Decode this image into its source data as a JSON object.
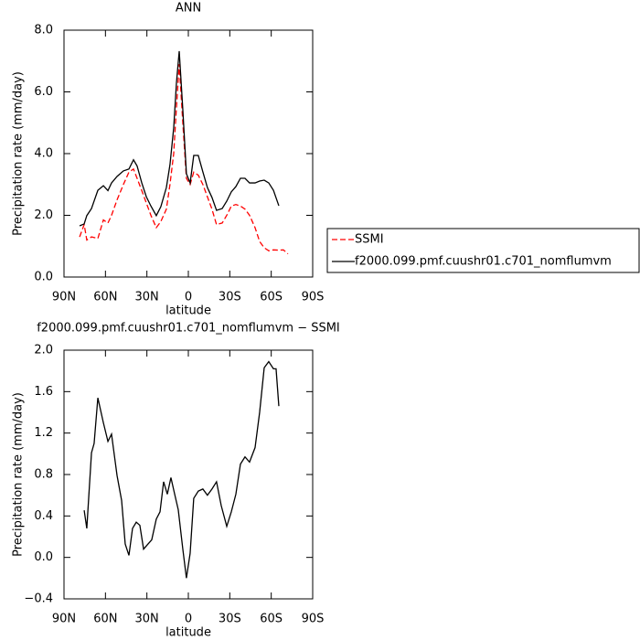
{
  "chart_data": [
    {
      "type": "line",
      "title": "ANN",
      "x_label": "latitude",
      "y_label": "Precipitation rate (mm/day)",
      "xlim": [
        90,
        -90
      ],
      "xticks": [
        {
          "value": 90,
          "label": "90N"
        },
        {
          "value": 60,
          "label": "60N"
        },
        {
          "value": 30,
          "label": "30N"
        },
        {
          "value": 0,
          "label": "0"
        },
        {
          "value": -30,
          "label": "30S"
        },
        {
          "value": -60,
          "label": "60S"
        },
        {
          "value": -90,
          "label": "90S"
        }
      ],
      "ylim": [
        0,
        8
      ],
      "yticks": [
        {
          "value": 0,
          "label": "0.0"
        },
        {
          "value": 2,
          "label": "2.0"
        },
        {
          "value": 4,
          "label": "4.0"
        },
        {
          "value": 6,
          "label": "6.0"
        },
        {
          "value": 8,
          "label": "8.0"
        }
      ],
      "legend": "right",
      "x": [
        78.7,
        75.4,
        73.5,
        70.1,
        65.5,
        61.5,
        58.2,
        55.6,
        51.6,
        47.0,
        43.0,
        39.7,
        37.1,
        33.7,
        30.4,
        27.1,
        23.2,
        19.9,
        15.9,
        13.3,
        10.6,
        8.6,
        6.6,
        4.0,
        1.4,
        -1.3,
        -3.9,
        -7.2,
        -10.5,
        -13.8,
        -17.1,
        -20.4,
        -24.5,
        -27.8,
        -31.1,
        -34.4,
        -37.7,
        -41.0,
        -44.3,
        -48.3,
        -51.6,
        -54.9,
        -58.2,
        -61.6,
        -65.5,
        -68.8,
        -72.1
      ],
      "series": [
        {
          "name": "SSMI",
          "color": "#ff0000",
          "line_style": "dashed",
          "values": [
            1.3,
            1.7,
            1.2,
            1.3,
            1.25,
            1.85,
            1.75,
            2.0,
            2.5,
            3.0,
            3.4,
            3.5,
            3.2,
            2.8,
            2.4,
            2.0,
            1.6,
            1.8,
            2.2,
            3.0,
            4.0,
            5.5,
            6.9,
            5.0,
            3.2,
            3.0,
            3.4,
            3.3,
            3.0,
            2.6,
            2.2,
            1.7,
            1.75,
            2.0,
            2.3,
            2.35,
            2.3,
            2.2,
            2.0,
            1.6,
            1.15,
            0.95,
            0.85,
            0.88,
            0.87,
            0.88,
            0.75
          ]
        },
        {
          "name": "f2000.099.pmf.cuushr01.c701_nomflumvm",
          "color": "#000000",
          "line_style": "solid",
          "values": [
            1.66,
            1.72,
            1.99,
            2.22,
            2.81,
            2.96,
            2.8,
            3.05,
            3.26,
            3.44,
            3.5,
            3.8,
            3.6,
            3.05,
            2.6,
            2.3,
            1.99,
            2.28,
            2.9,
            3.64,
            4.83,
            6.3,
            7.32,
            5.42,
            3.35,
            3.05,
            3.94,
            3.94,
            3.41,
            2.9,
            2.58,
            2.16,
            2.22,
            2.46,
            2.76,
            2.93,
            3.2,
            3.2,
            3.05,
            3.05,
            3.11,
            3.14,
            3.05,
            2.81,
            2.31,
            null,
            null
          ]
        }
      ]
    },
    {
      "type": "line",
      "title": "f2000.099.pmf.cuushr01.c701_nomflumvm − SSMI",
      "x_label": "latitude",
      "y_label": "Precipitation rate (mm/day)",
      "xlim": [
        90,
        -90
      ],
      "xticks": [
        {
          "value": 90,
          "label": "90N"
        },
        {
          "value": 60,
          "label": "60N"
        },
        {
          "value": 30,
          "label": "30N"
        },
        {
          "value": 0,
          "label": "0"
        },
        {
          "value": -30,
          "label": "30S"
        },
        {
          "value": -60,
          "label": "60S"
        },
        {
          "value": -90,
          "label": "90S"
        }
      ],
      "ylim": [
        -0.4,
        2.0
      ],
      "yticks": [
        {
          "value": -0.4,
          "label": "−0.4"
        },
        {
          "value": 0,
          "label": "0.0"
        },
        {
          "value": 0.4,
          "label": "0.4"
        },
        {
          "value": 0.8,
          "label": "0.8"
        },
        {
          "value": 1.2,
          "label": "1.2"
        },
        {
          "value": 1.6,
          "label": "1.6"
        },
        {
          "value": 2.0,
          "label": "2.0"
        }
      ],
      "x": [
        75.4,
        73.5,
        70.1,
        68.2,
        65.5,
        61.5,
        58.2,
        55.6,
        51.6,
        48.3,
        45.7,
        43.0,
        40.4,
        37.7,
        35.1,
        32.4,
        29.8,
        26.5,
        23.2,
        20.5,
        17.9,
        15.2,
        12.6,
        9.9,
        7.3,
        4.0,
        1.4,
        -1.3,
        -3.9,
        -7.2,
        -10.5,
        -13.8,
        -17.1,
        -20.4,
        -23.8,
        -27.8,
        -31.1,
        -34.4,
        -37.7,
        -41.0,
        -44.3,
        -48.3,
        -51.6,
        -54.9,
        -58.2,
        -61.6,
        -63.5,
        -65.5
      ],
      "series": [
        {
          "color": "#000000",
          "line_style": "solid",
          "values": [
            0.455,
            0.28,
            1.01,
            1.1,
            1.54,
            1.3,
            1.12,
            1.19,
            0.79,
            0.55,
            0.13,
            0.02,
            0.28,
            0.34,
            0.31,
            0.08,
            0.12,
            0.17,
            0.37,
            0.44,
            0.73,
            0.61,
            0.77,
            0.61,
            0.46,
            0.08,
            -0.2,
            0.04,
            0.57,
            0.64,
            0.66,
            0.6,
            0.66,
            0.73,
            0.5,
            0.3,
            0.44,
            0.61,
            0.9,
            0.97,
            0.92,
            1.06,
            1.4,
            1.83,
            1.89,
            1.82,
            1.82,
            1.46
          ]
        }
      ]
    }
  ]
}
